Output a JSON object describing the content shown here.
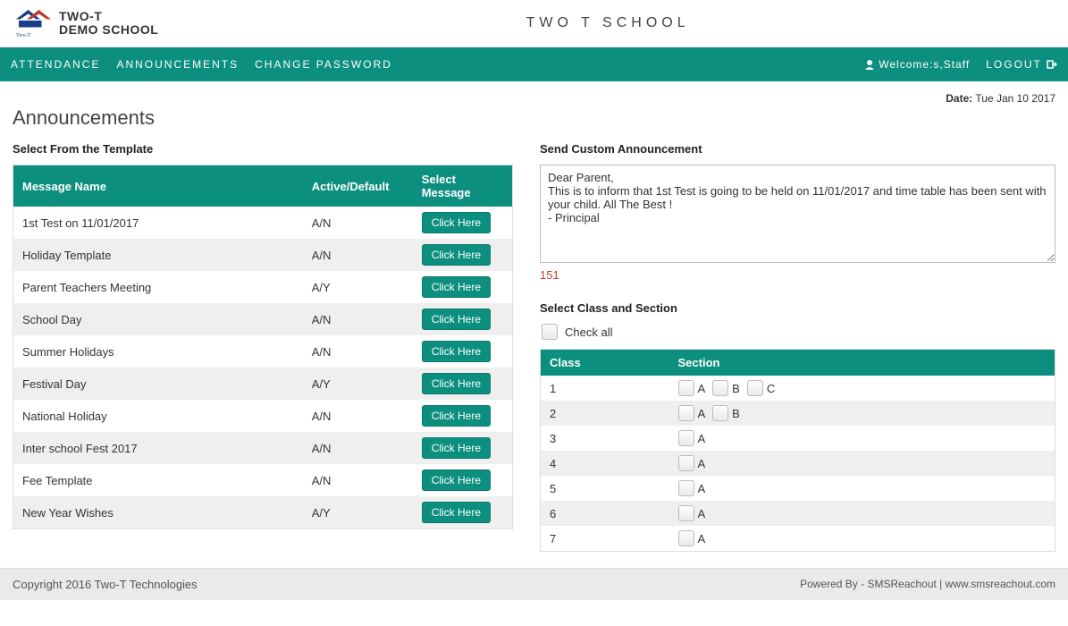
{
  "brand": {
    "line1": "TWO-T",
    "line2": "DEMO SCHOOL",
    "sub": "Technologies"
  },
  "header": {
    "school_title": "TWO T SCHOOL"
  },
  "nav": {
    "items": [
      "ATTENDANCE",
      "ANNOUNCEMENTS",
      "CHANGE PASSWORD"
    ],
    "welcome": "Welcome:s,Staff",
    "logout": "LOGOUT"
  },
  "date_label": "Date:",
  "date_value": "Tue Jan 10 2017",
  "page_title": "Announcements",
  "left": {
    "heading": "Select From the Template",
    "columns": {
      "name": "Message Name",
      "active": "Active/Default",
      "select": "Select Message"
    },
    "button_label": "Click Here",
    "rows": [
      {
        "name": "1st Test on 11/01/2017",
        "active": "A/N"
      },
      {
        "name": "Holiday Template",
        "active": "A/N"
      },
      {
        "name": "Parent Teachers Meeting",
        "active": "A/Y"
      },
      {
        "name": "School Day",
        "active": "A/N"
      },
      {
        "name": "Summer Holidays",
        "active": "A/N"
      },
      {
        "name": "Festival Day",
        "active": "A/Y"
      },
      {
        "name": "National Holiday",
        "active": "A/N"
      },
      {
        "name": "Inter school Fest 2017",
        "active": "A/N"
      },
      {
        "name": "Fee Template",
        "active": "A/N"
      },
      {
        "name": "New Year Wishes",
        "active": "A/Y"
      }
    ]
  },
  "right": {
    "heading": "Send Custom Announcement",
    "message": "Dear Parent,\nThis is to inform that 1st Test is going to be held on 11/01/2017 and time table has been sent with your child. All The Best !\n- Principal",
    "char_count": "151",
    "class_heading": "Select Class and Section",
    "check_all": "Check all",
    "columns": {
      "class": "Class",
      "section": "Section"
    },
    "classes": [
      {
        "class": "1",
        "sections": [
          "A",
          "B",
          "C"
        ]
      },
      {
        "class": "2",
        "sections": [
          "A",
          "B"
        ]
      },
      {
        "class": "3",
        "sections": [
          "A"
        ]
      },
      {
        "class": "4",
        "sections": [
          "A"
        ]
      },
      {
        "class": "5",
        "sections": [
          "A"
        ]
      },
      {
        "class": "6",
        "sections": [
          "A"
        ]
      },
      {
        "class": "7",
        "sections": [
          "A"
        ]
      }
    ]
  },
  "footer": {
    "left": "Copyright 2016  Two-T Technologies",
    "right": "Powered By - SMSReachout   |  www.smsreachout.com"
  },
  "colors": {
    "teal": "#0c8f7f",
    "row_alt": "#efefef",
    "danger": "#c0392b",
    "footer_bg": "#eaeaea"
  }
}
